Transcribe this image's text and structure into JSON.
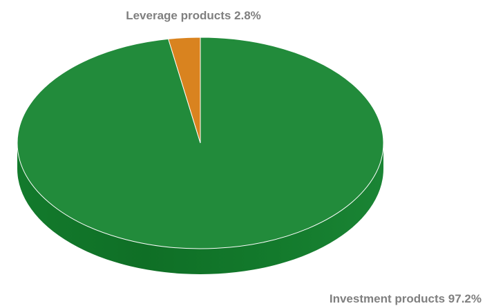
{
  "chart_data": {
    "type": "pie",
    "style": "3d",
    "start_angle": "12 o'clock",
    "direction": "clockwise",
    "slices": [
      {
        "label": "Investment products",
        "value": 97.2,
        "display": "Investment products 97.2%",
        "color": "#228b3b",
        "side_color": "#15772b"
      },
      {
        "label": "Leverage products",
        "value": 2.8,
        "display": "Leverage products 2.8%",
        "color": "#d9831f",
        "side_color": "#b56a14"
      }
    ]
  }
}
